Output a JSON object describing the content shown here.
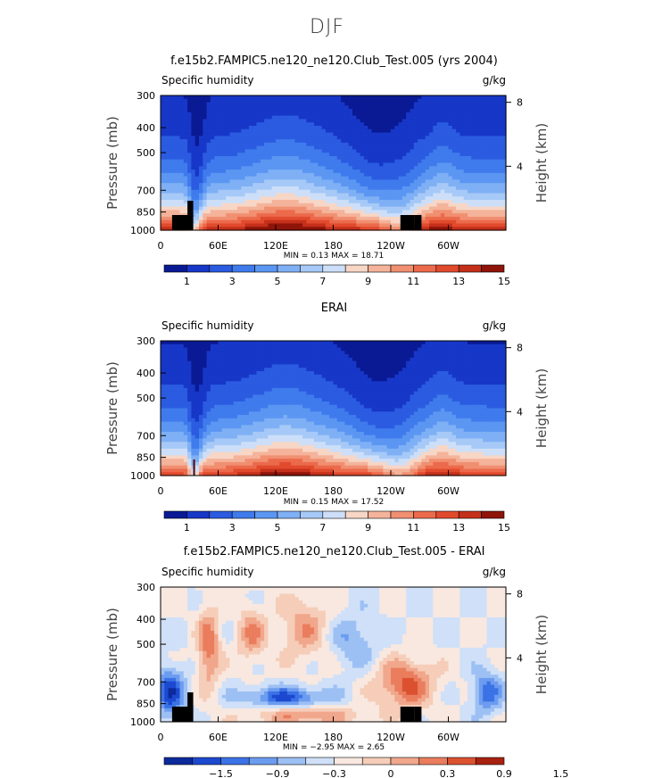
{
  "figure": {
    "suptitle": "DJF"
  },
  "chart_data": [
    {
      "type": "heatmap",
      "title": "f.e15b2.FAMPIC5.ne120_ne120.Club_Test.005 (yrs 2004)",
      "left_label": "Specific humidity",
      "right_label": "g/kg",
      "ylabel": "Pressure (mb)",
      "y2label": "Height (km)",
      "x_ticks": [
        "0",
        "60E",
        "120E",
        "180",
        "120W",
        "60W"
      ],
      "y_ticks": [
        "300",
        "400",
        "500",
        "700",
        "850",
        "1000"
      ],
      "y2_ticks": [
        "8",
        "4"
      ],
      "stats": "MIN =    0.13   MAX =   18.71",
      "colorbar_labels": [
        "1",
        "3",
        "5",
        "7",
        "9",
        "11",
        "13",
        "15"
      ]
    },
    {
      "type": "heatmap",
      "title": "ERAI",
      "left_label": "Specific humidity",
      "right_label": "g/kg",
      "ylabel": "Pressure (mb)",
      "y2label": "Height (km)",
      "x_ticks": [
        "0",
        "60E",
        "120E",
        "180",
        "120W",
        "60W"
      ],
      "y_ticks": [
        "300",
        "400",
        "500",
        "700",
        "850",
        "1000"
      ],
      "y2_ticks": [
        "8",
        "4"
      ],
      "stats": "MIN =    0.15   MAX =   17.52",
      "colorbar_labels": [
        "1",
        "3",
        "5",
        "7",
        "9",
        "11",
        "13",
        "15"
      ]
    },
    {
      "type": "heatmap",
      "title": "f.e15b2.FAMPIC5.ne120_ne120.Club_Test.005 - ERAI",
      "left_label": "Specific humidity",
      "right_label": "g/kg",
      "ylabel": "Pressure (mb)",
      "y2label": "Height (km)",
      "x_ticks": [
        "0",
        "60E",
        "120E",
        "180",
        "120W",
        "60W"
      ],
      "y_ticks": [
        "300",
        "400",
        "500",
        "700",
        "850",
        "1000"
      ],
      "y2_ticks": [
        "8",
        "4"
      ],
      "stats": "MIN =   −2.95   MAX =    2.65",
      "colorbar_labels": [
        "−1.5",
        "−0.9",
        "−0.3",
        "0",
        "0.3",
        "0.9",
        "1.5"
      ]
    }
  ],
  "colors": {
    "ramp": [
      "#0a1a94",
      "#1737c8",
      "#2a5be0",
      "#3f7bec",
      "#5b96f2",
      "#7fb0f5",
      "#a6c9f7",
      "#cddff8",
      "#f7d6c6",
      "#f4b39a",
      "#f18f71",
      "#ec6a4c",
      "#e14a2d",
      "#c4301b",
      "#8f1409"
    ],
    "diff_ramp": [
      "#0c2a9c",
      "#1c49cf",
      "#3b72e6",
      "#6c9cf0",
      "#9dc0f4",
      "#cfe0f8",
      "#f8e8e0",
      "#f6cdb8",
      "#f1a78c",
      "#ea7d5d",
      "#db5130",
      "#a8220f"
    ],
    "topo": "#000000"
  }
}
